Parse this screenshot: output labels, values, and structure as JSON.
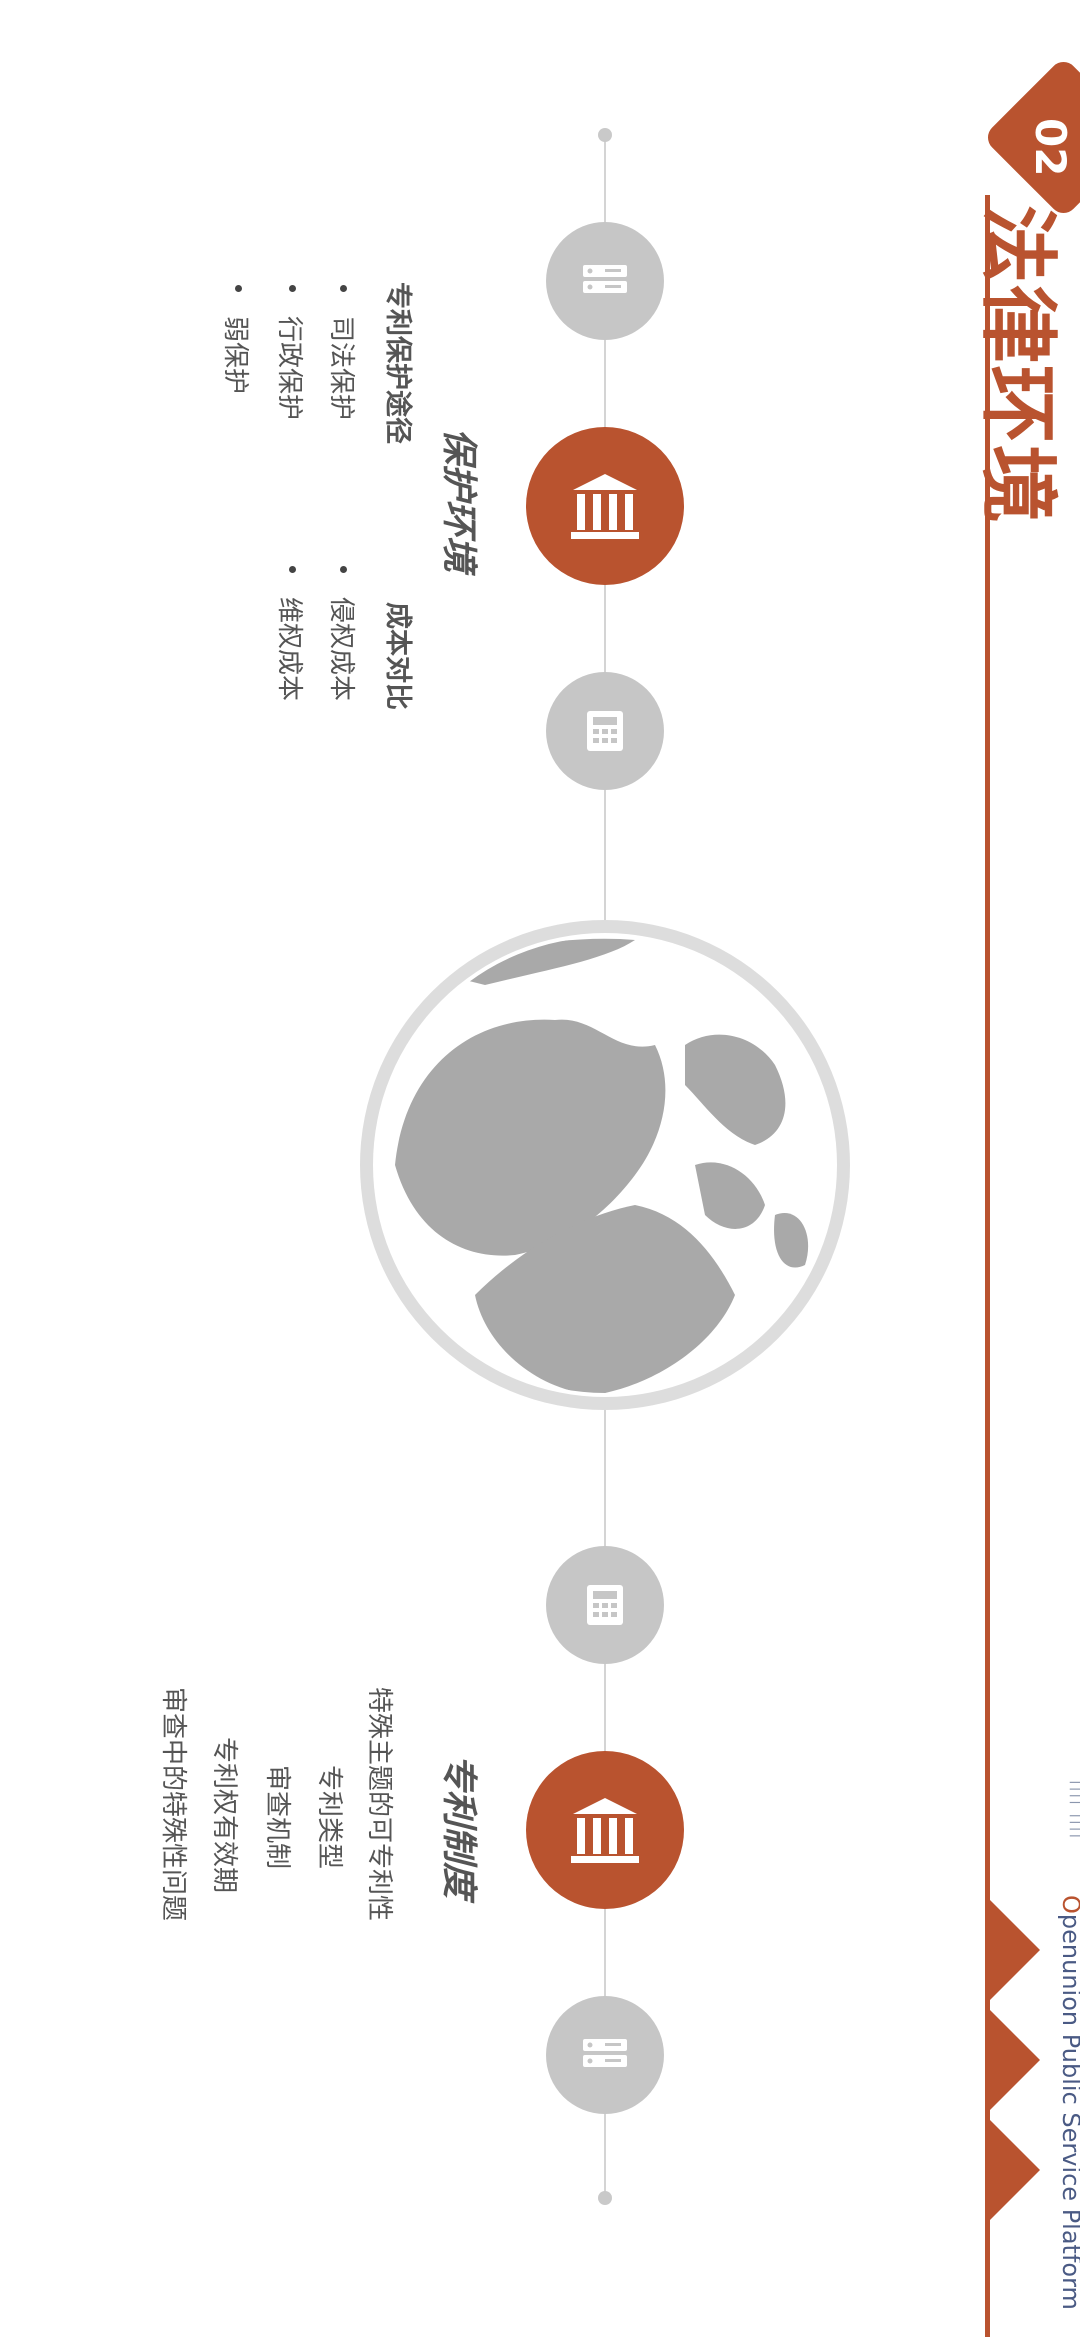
{
  "header": {
    "section_number": "02",
    "section_title": "法律环境",
    "brand_text_o": "O",
    "brand_text_rest": "penunion Public Service Platform",
    "partner_logo_text": "|||| ||||"
  },
  "colors": {
    "accent": "#b9532f",
    "node_gray": "#c6c6c6",
    "text_gray": "#555555",
    "line_gray": "#d4d4d4"
  },
  "protection": {
    "heading": "保护环境",
    "paths": {
      "title": "专利保护途径",
      "items": [
        "司法保护",
        "行政保护",
        "弱保护"
      ]
    },
    "cost": {
      "title": "成本对比",
      "items": [
        "侵权成本",
        "维权成本"
      ]
    }
  },
  "patent_system": {
    "heading": "专利制度",
    "items": [
      "特殊主题的可专利性",
      "专利类型",
      "审查机制",
      "专利权有效期",
      "审查中的特殊性问题"
    ]
  },
  "icons": {
    "globe": "globe-icon",
    "building": "institution-icon",
    "calculator": "calculator-icon",
    "servers": "server-icon"
  }
}
